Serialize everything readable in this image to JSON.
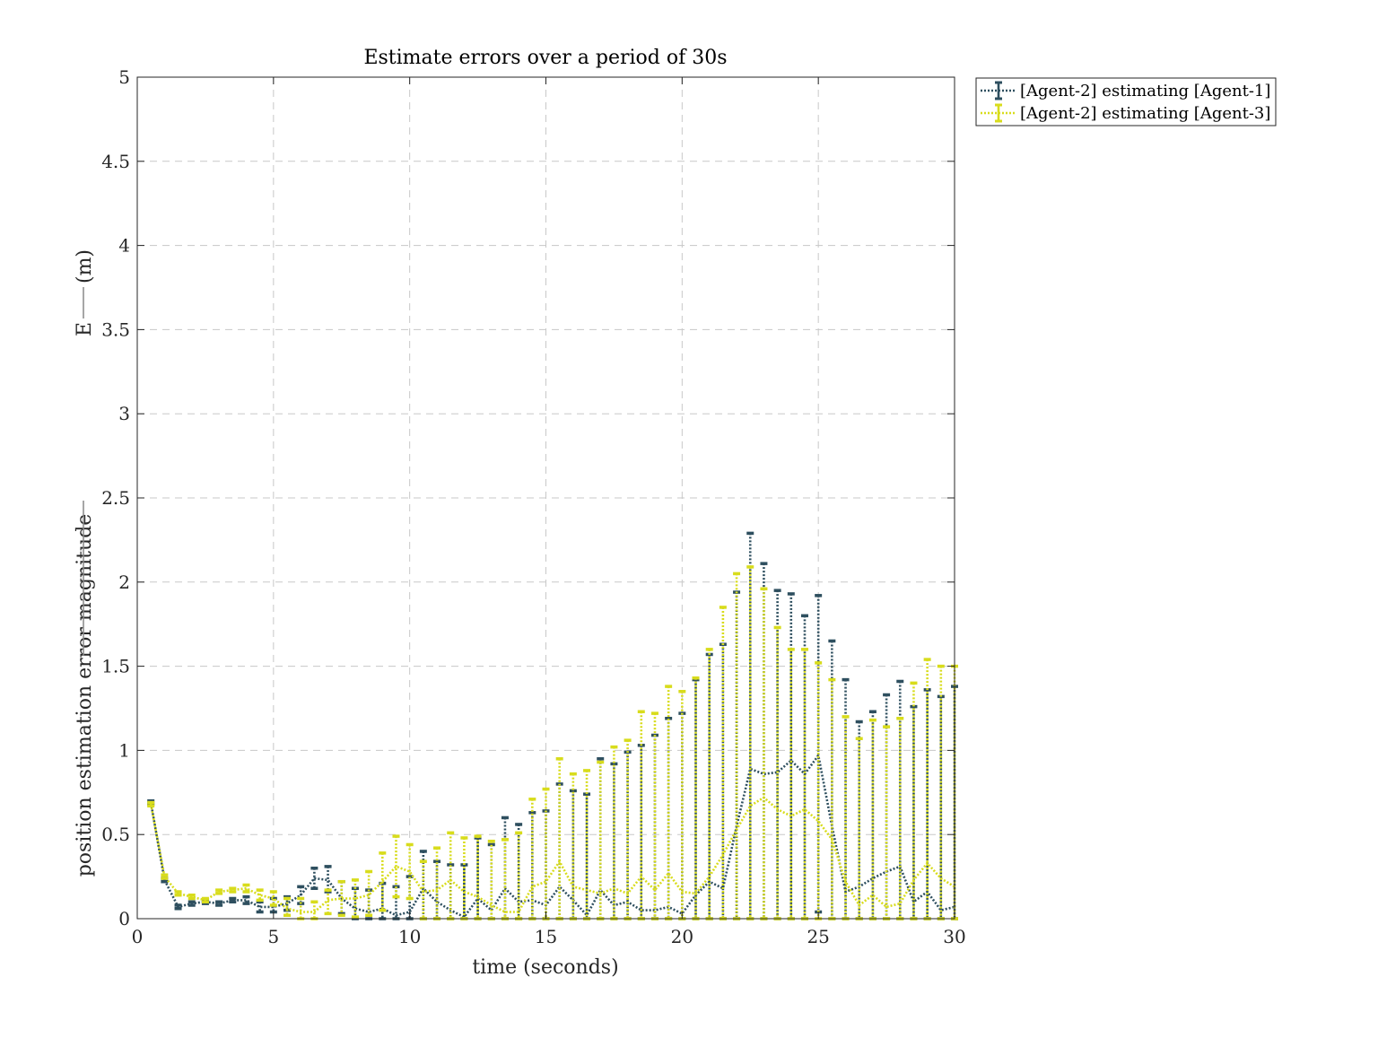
{
  "chart_data": {
    "type": "line",
    "title": "Estimate errors over a period of 30s",
    "xlabel": "time (seconds)",
    "ylabel": "position estimation error magnitude",
    "ylabel_symbol": "E",
    "ylabel_unit": "(m)",
    "xlim": [
      0,
      30
    ],
    "ylim": [
      0,
      5
    ],
    "xticks": [
      0,
      5,
      10,
      15,
      20,
      25,
      30
    ],
    "xtick_labels": [
      "0",
      "5",
      "10",
      "15",
      "20",
      "25",
      "30"
    ],
    "yticks": [
      0,
      0.5,
      1,
      1.5,
      2,
      2.5,
      3,
      3.5,
      4,
      4.5,
      5
    ],
    "ytick_labels": [
      "0",
      "0.5",
      "1",
      "1.5",
      "2",
      "2.5",
      "3",
      "3.5",
      "4",
      "4.5",
      "5"
    ],
    "grid": true,
    "legend_position": "outside-top-right",
    "x": [
      0.5,
      1,
      1.5,
      2,
      2.5,
      3,
      3.5,
      4,
      4.5,
      5,
      5.5,
      6,
      6.5,
      7,
      7.5,
      8,
      8.5,
      9,
      9.5,
      10,
      10.5,
      11,
      11.5,
      12,
      12.5,
      13,
      13.5,
      14,
      14.5,
      15,
      15.5,
      16,
      16.5,
      17,
      17.5,
      18,
      18.5,
      19,
      19.5,
      20,
      20.5,
      21,
      21.5,
      22,
      22.5,
      23,
      23.5,
      24,
      24.5,
      25,
      25.5,
      26,
      26.5,
      27,
      27.5,
      28,
      28.5,
      29,
      29.5,
      30
    ],
    "series": [
      {
        "name": "[Agent-2] estimating [Agent-1]",
        "color": "#2e4f5f",
        "values": [
          0.69,
          0.23,
          0.07,
          0.09,
          0.1,
          0.09,
          0.11,
          0.11,
          0.07,
          0.07,
          0.09,
          0.14,
          0.24,
          0.23,
          0.12,
          0.06,
          0.04,
          0.06,
          0.02,
          0.04,
          0.18,
          0.1,
          0.05,
          0.01,
          0.12,
          0.05,
          0.18,
          0.1,
          0.11,
          0.08,
          0.19,
          0.11,
          0.02,
          0.17,
          0.08,
          0.1,
          0.05,
          0.05,
          0.07,
          0.03,
          0.14,
          0.22,
          0.18,
          0.55,
          0.89,
          0.86,
          0.87,
          0.94,
          0.86,
          0.97,
          0.55,
          0.16,
          0.19,
          0.24,
          0.28,
          0.31,
          0.1,
          0.16,
          0.05,
          0.07
        ],
        "upper": [
          0.7,
          0.24,
          0.08,
          0.1,
          0.11,
          0.1,
          0.12,
          0.13,
          0.1,
          0.12,
          0.13,
          0.19,
          0.3,
          0.31,
          0.22,
          0.18,
          0.17,
          0.21,
          0.19,
          0.25,
          0.4,
          0.34,
          0.32,
          0.32,
          0.48,
          0.44,
          0.6,
          0.56,
          0.63,
          0.64,
          0.8,
          0.76,
          0.74,
          0.95,
          0.92,
          0.99,
          1.03,
          1.09,
          1.19,
          1.22,
          1.42,
          1.57,
          1.63,
          1.94,
          2.29,
          2.11,
          1.95,
          1.93,
          1.8,
          1.92,
          1.65,
          1.42,
          1.17,
          1.23,
          1.33,
          1.41,
          1.26,
          1.36,
          1.32,
          1.38
        ],
        "lower": [
          0.68,
          0.22,
          0.06,
          0.08,
          0.09,
          0.08,
          0.1,
          0.09,
          0.04,
          0.04,
          0.05,
          0.09,
          0.18,
          0.16,
          0.03,
          0,
          0,
          0,
          0,
          0,
          0,
          0,
          0,
          0,
          0,
          0,
          0,
          0,
          0,
          0,
          0,
          0,
          0,
          0,
          0,
          0,
          0,
          0,
          0,
          0,
          0,
          0,
          0,
          0,
          0,
          0,
          0,
          0,
          0,
          0.04,
          0,
          0,
          0,
          0,
          0,
          0,
          0,
          0,
          0,
          0
        ]
      },
      {
        "name": "[Agent-2] estimating [Agent-3]",
        "color": "#d8dc1c",
        "values": [
          0.68,
          0.25,
          0.15,
          0.13,
          0.11,
          0.16,
          0.17,
          0.18,
          0.14,
          0.12,
          0.06,
          0.04,
          0.04,
          0.11,
          0.12,
          0.12,
          0.14,
          0.22,
          0.31,
          0.28,
          0.16,
          0.17,
          0.23,
          0.16,
          0.13,
          0.08,
          0.04,
          0.04,
          0.19,
          0.22,
          0.34,
          0.19,
          0.17,
          0.15,
          0.18,
          0.15,
          0.25,
          0.17,
          0.27,
          0.16,
          0.15,
          0.25,
          0.38,
          0.53,
          0.67,
          0.72,
          0.65,
          0.61,
          0.65,
          0.58,
          0.47,
          0.22,
          0.08,
          0.14,
          0.07,
          0.09,
          0.23,
          0.33,
          0.24,
          0.19
        ],
        "upper": [
          0.69,
          0.26,
          0.16,
          0.14,
          0.12,
          0.17,
          0.18,
          0.2,
          0.17,
          0.16,
          0.12,
          0.12,
          0.1,
          0.17,
          0.22,
          0.23,
          0.28,
          0.39,
          0.49,
          0.44,
          0.34,
          0.42,
          0.51,
          0.48,
          0.49,
          0.46,
          0.47,
          0.51,
          0.71,
          0.77,
          0.95,
          0.86,
          0.88,
          0.93,
          1.02,
          1.06,
          1.23,
          1.22,
          1.38,
          1.35,
          1.43,
          1.6,
          1.85,
          2.05,
          2.09,
          1.96,
          1.73,
          1.6,
          1.6,
          1.52,
          1.42,
          1.2,
          1.07,
          1.18,
          1.14,
          1.19,
          1.4,
          1.54,
          1.5,
          1.5
        ],
        "lower": [
          0.67,
          0.24,
          0.14,
          0.12,
          0.1,
          0.15,
          0.16,
          0.16,
          0.11,
          0.08,
          0.02,
          0,
          0,
          0.03,
          0.02,
          0.01,
          0.02,
          0.05,
          0.13,
          0.12,
          0,
          0,
          0,
          0,
          0,
          0,
          0,
          0,
          0,
          0,
          0,
          0,
          0,
          0,
          0,
          0,
          0,
          0,
          0,
          0,
          0,
          0,
          0,
          0,
          0,
          0,
          0,
          0,
          0,
          0,
          0,
          0,
          0,
          0,
          0,
          0,
          0,
          0,
          0,
          0
        ]
      }
    ]
  }
}
